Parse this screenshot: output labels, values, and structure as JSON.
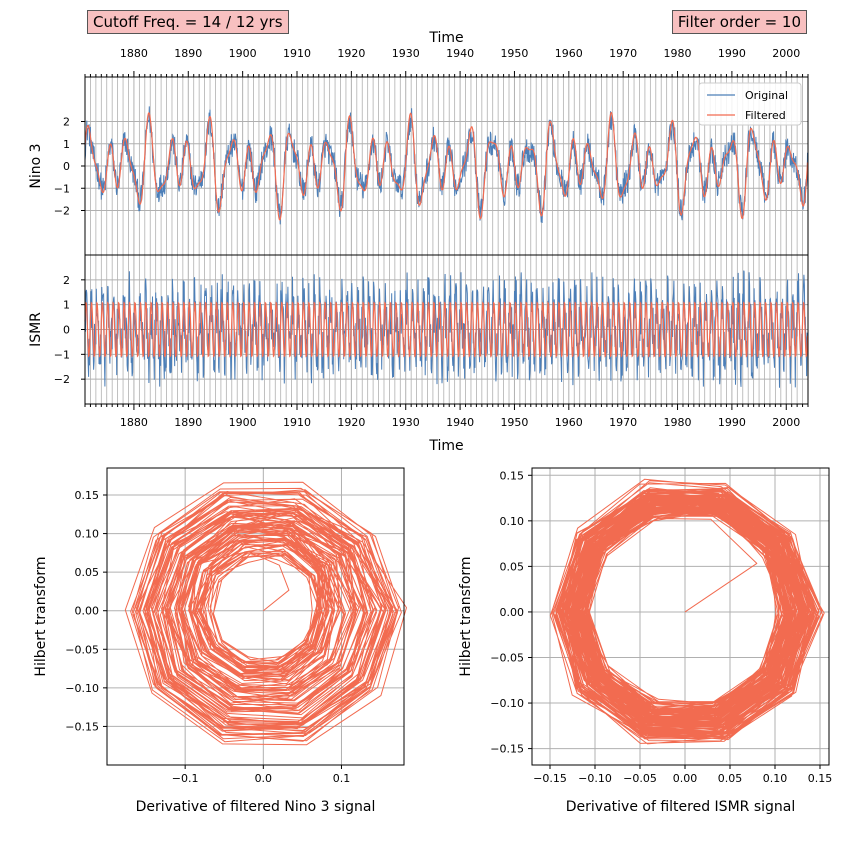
{
  "header": {
    "cutoff_label": "Cutoff Freq. = 14 / 12 yrs",
    "filter_order_label": "Filter order = 10"
  },
  "colors": {
    "original": "#4c7fb8",
    "filtered": "#f26b50",
    "grid": "#b0b0b0",
    "tag_background": "#f8c0c0"
  },
  "chart_data": [
    {
      "id": "nino3",
      "type": "line",
      "xlabel": "Time",
      "ylabel": "Nino 3",
      "xlim": [
        1871,
        2004
      ],
      "ylim": [
        -4,
        4
      ],
      "x_ticks": [
        1880,
        1890,
        1900,
        1910,
        1920,
        1930,
        1940,
        1950,
        1960,
        1970,
        1980,
        1990,
        2000
      ],
      "y_ticks": [
        -2,
        -1,
        0,
        1,
        2
      ],
      "grid": true,
      "legend": "top-right",
      "series": [
        {
          "name": "Original",
          "color": "#4c7fb8",
          "frequency": "monthly",
          "range": [
            -3.4,
            2.8
          ]
        },
        {
          "name": "Filtered",
          "color": "#f26b50",
          "frequency": "monthly",
          "range": [
            -2.6,
            2.6
          ]
        }
      ],
      "legend_labels": [
        "Original",
        "Filtered"
      ]
    },
    {
      "id": "ismr",
      "type": "line",
      "xlabel": "Time",
      "ylabel": "ISMR",
      "xlim": [
        1871,
        2004
      ],
      "ylim": [
        -3,
        3
      ],
      "x_ticks": [
        1880,
        1890,
        1900,
        1910,
        1920,
        1930,
        1940,
        1950,
        1960,
        1970,
        1980,
        1990,
        2000
      ],
      "y_ticks": [
        -2,
        -1,
        0,
        1,
        2
      ],
      "grid": true,
      "series": [
        {
          "name": "Original",
          "color": "#4c7fb8",
          "frequency": "monthly",
          "range": [
            -3.0,
            3.0
          ]
        },
        {
          "name": "Filtered",
          "color": "#f26b50",
          "frequency": "monthly",
          "range": [
            -1.3,
            1.3
          ]
        }
      ]
    },
    {
      "id": "phase-nino3",
      "type": "line",
      "xlabel": "Derivative of filtered Nino 3 signal",
      "ylabel": "Hilbert transform",
      "xlim": [
        -0.2,
        0.18
      ],
      "ylim": [
        -0.2,
        0.185
      ],
      "x_ticks": [
        -0.1,
        0.0,
        0.1
      ],
      "x_tick_labels": [
        "−0.1",
        "0.0",
        "0.1"
      ],
      "y_ticks": [
        -0.15,
        -0.1,
        -0.05,
        0.0,
        0.05,
        0.1,
        0.15
      ],
      "y_tick_labels": [
        "−0.15",
        "−0.10",
        "−0.05",
        "0.00",
        "0.05",
        "0.10",
        "0.15"
      ],
      "grid": true,
      "series": [
        {
          "name": "",
          "color": "#f26b50",
          "radius_range": [
            0.0,
            0.18
          ],
          "cycles": 95
        }
      ]
    },
    {
      "id": "phase-ismr",
      "type": "line",
      "xlabel": "Derivative of filtered ISMR signal",
      "ylabel": "Hilbert transform",
      "xlim": [
        -0.17,
        0.16
      ],
      "ylim": [
        -0.168,
        0.158
      ],
      "x_ticks": [
        -0.15,
        -0.1,
        -0.05,
        0.0,
        0.05,
        0.1,
        0.15
      ],
      "x_tick_labels": [
        "−0.15",
        "−0.10",
        "−0.05",
        "0.00",
        "0.05",
        "0.10",
        "0.15"
      ],
      "y_ticks": [
        -0.15,
        -0.1,
        -0.05,
        0.0,
        0.05,
        0.1,
        0.15
      ],
      "y_tick_labels": [
        "−0.15",
        "−0.10",
        "−0.05",
        "0.00",
        "0.05",
        "0.10",
        "0.15"
      ],
      "grid": true,
      "series": [
        {
          "name": "",
          "color": "#f26b50",
          "radius_range": [
            0.08,
            0.15
          ],
          "cycles": 130
        }
      ]
    }
  ]
}
